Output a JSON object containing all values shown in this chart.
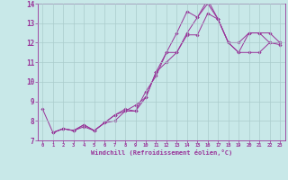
{
  "xlabel": "Windchill (Refroidissement éolien,°C)",
  "bg_color": "#c8e8e8",
  "line_color": "#993399",
  "grid_color": "#aacccc",
  "xlim": [
    -0.5,
    23.5
  ],
  "ylim": [
    7,
    14
  ],
  "xticks": [
    0,
    1,
    2,
    3,
    4,
    5,
    6,
    7,
    8,
    9,
    10,
    11,
    12,
    13,
    14,
    15,
    16,
    17,
    18,
    19,
    20,
    21,
    22,
    23
  ],
  "yticks": [
    7,
    8,
    9,
    10,
    11,
    12,
    13,
    14
  ],
  "line1_x": [
    0,
    1,
    2,
    3,
    4,
    5,
    6,
    7,
    8,
    9,
    10,
    11,
    12,
    13,
    14,
    15,
    16,
    17,
    18,
    19,
    20,
    21,
    22,
    23
  ],
  "line1_y": [
    8.6,
    7.4,
    7.6,
    7.5,
    7.8,
    7.5,
    7.9,
    8.3,
    8.5,
    8.5,
    9.2,
    10.5,
    11.5,
    12.5,
    13.6,
    13.3,
    14.2,
    13.2,
    12.0,
    12.0,
    12.5,
    12.5,
    12.0,
    12.0
  ],
  "line2_x": [
    1,
    2,
    3,
    4,
    5,
    6,
    7,
    8,
    9,
    10,
    11,
    12,
    13,
    14,
    15,
    16,
    17,
    18,
    19,
    20,
    21,
    22,
    23
  ],
  "line2_y": [
    7.4,
    7.6,
    7.5,
    7.8,
    7.5,
    7.9,
    8.3,
    8.6,
    8.5,
    9.5,
    10.3,
    11.5,
    11.5,
    12.5,
    13.3,
    14.0,
    13.2,
    12.0,
    11.5,
    12.5,
    12.5,
    12.5,
    12.0
  ],
  "line3_x": [
    1,
    2,
    3,
    4,
    5,
    6,
    7,
    8,
    9,
    10,
    11,
    12,
    13,
    14,
    15,
    16,
    17,
    18,
    19,
    20,
    21,
    22,
    23
  ],
  "line3_y": [
    7.4,
    7.6,
    7.5,
    7.7,
    7.5,
    7.9,
    8.0,
    8.5,
    8.8,
    9.2,
    10.5,
    11.0,
    11.5,
    12.4,
    12.4,
    13.5,
    13.2,
    12.0,
    11.5,
    11.5,
    11.5,
    12.0,
    11.9
  ]
}
